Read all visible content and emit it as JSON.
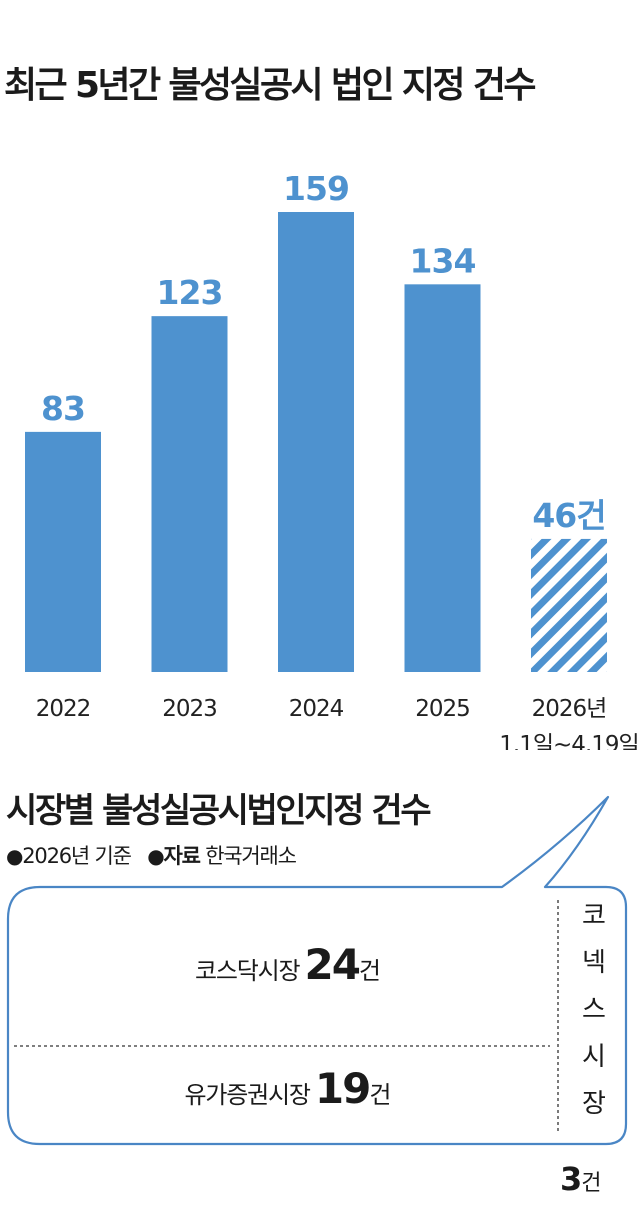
{
  "title": "최근 5년간 불성실공시 법인 지정 건수",
  "chart_data": {
    "type": "bar",
    "title": "최근 5년간 불성실공시 법인 지정 건수",
    "categories": [
      "2022",
      "2023",
      "2024",
      "2025",
      "2026년"
    ],
    "category_notes": [
      "",
      "",
      "",
      "",
      "1.1일~4.19일"
    ],
    "values": [
      83,
      123,
      159,
      134,
      46
    ],
    "value_labels": [
      "83",
      "123",
      "159",
      "134",
      "46건"
    ],
    "partial_flags": [
      false,
      false,
      false,
      false,
      true
    ],
    "ylim": [
      0,
      159
    ],
    "grid": false,
    "colors": {
      "bar": "#4e92cf",
      "label": "#4e92cf"
    }
  },
  "market": {
    "title": "시장별 불성실공시법인지정 건수",
    "basis": "2026년 기준",
    "source_key": "자료",
    "source": "한국거래소",
    "rows": [
      {
        "name": "코스닥시장",
        "count": "24",
        "unit": "건"
      },
      {
        "name": "유가증권시장",
        "count": "19",
        "unit": "건"
      }
    ],
    "konex": {
      "name": "코넥스시장",
      "count": "3",
      "unit": "건"
    }
  },
  "colors": {
    "bubble_border": "#4a86c5",
    "text": "#1b1b1b"
  }
}
